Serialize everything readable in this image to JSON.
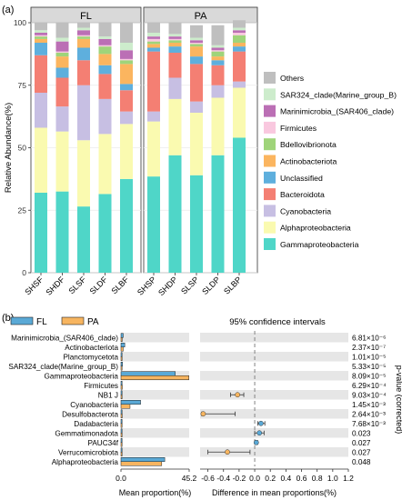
{
  "panel_a_label": "(a)",
  "panel_b_label": "(b)",
  "chart_data": [
    {
      "type": "bar",
      "stacked": true,
      "facets": [
        "FL",
        "PA"
      ],
      "categories": [
        {
          "label": "SHSF",
          "facet": "FL"
        },
        {
          "label": "SHDF",
          "facet": "FL"
        },
        {
          "label": "SLSF",
          "facet": "FL"
        },
        {
          "label": "SLDF",
          "facet": "FL"
        },
        {
          "label": "SLBF",
          "facet": "FL"
        },
        {
          "label": "SHSP",
          "facet": "PA"
        },
        {
          "label": "SHDP",
          "facet": "PA"
        },
        {
          "label": "SLSP",
          "facet": "PA"
        },
        {
          "label": "SLDP",
          "facet": "PA"
        },
        {
          "label": "SLBP",
          "facet": "PA"
        }
      ],
      "ylabel": "Relative Abundance(%)",
      "ylim": [
        0,
        100
      ],
      "yticks": [
        "0",
        "25",
        "50",
        "75",
        "100"
      ],
      "legend_position": "right",
      "series": [
        {
          "name": "Gammaproteobacteria",
          "color": "#4fd6c8",
          "values": [
            32,
            32.5,
            26.5,
            31.5,
            37.5,
            38.5,
            47,
            39,
            47,
            54
          ]
        },
        {
          "name": "Alphaproteobacteria",
          "color": "#fafab0",
          "values": [
            26,
            24,
            26.5,
            24,
            22,
            22,
            22.5,
            25,
            23,
            20
          ]
        },
        {
          "name": "Cyanobacteria",
          "color": "#c7bfe3",
          "values": [
            14,
            10,
            22,
            14,
            5,
            4,
            8.5,
            4.5,
            5,
            2.5
          ]
        },
        {
          "name": "Bacteroidota",
          "color": "#f47f73",
          "values": [
            15,
            11.5,
            10,
            10,
            8.5,
            24,
            10,
            15,
            8,
            12
          ]
        },
        {
          "name": "Unclassified",
          "color": "#5eafdd",
          "values": [
            5,
            4,
            5,
            3.5,
            2.5,
            1.5,
            2.5,
            3,
            2,
            2
          ]
        },
        {
          "name": "Actinobacteriota",
          "color": "#fbb55f",
          "values": [
            1.5,
            4.5,
            3.5,
            4.5,
            8,
            1.5,
            1.5,
            4,
            1.5,
            1.5
          ]
        },
        {
          "name": "Bdellovibrionota",
          "color": "#9fd47a",
          "values": [
            1,
            1.5,
            1,
            3,
            1.5,
            1,
            1,
            1,
            2,
            3
          ]
        },
        {
          "name": "Firmicutes",
          "color": "#f9c8df",
          "values": [
            0.5,
            0.5,
            0.5,
            0.5,
            0.5,
            1,
            0.5,
            0.5,
            0.5,
            1
          ]
        },
        {
          "name": "Marinimicrobia_(SAR406_clade)",
          "color": "#bb6fb5",
          "values": [
            1,
            4,
            2,
            2.5,
            3.5,
            1,
            1,
            1,
            1,
            1
          ]
        },
        {
          "name": "SAR324_clade(Marine_group_B)",
          "color": "#cdeccc",
          "values": [
            1,
            1.5,
            1,
            1,
            3,
            1.5,
            1,
            1,
            1,
            1
          ]
        },
        {
          "name": "Others",
          "color": "#bfbfbf",
          "values": [
            3,
            6,
            2,
            5.5,
            8,
            4,
            4.5,
            5,
            8,
            3
          ]
        }
      ]
    },
    {
      "type": "bar",
      "orientation": "horizontal",
      "categories": [
        "Marinimicrobia_(SAR406_clade)",
        "Actinobacteriota",
        "Planctomycetota",
        "SAR324_clade(Marine_group_B)",
        "Gammaproteobacteria",
        "Firmicutes",
        "NB1 J",
        "Cyanobacteria",
        "Desulfobacterota",
        "Dadabacteria",
        "Gemmatimonadota",
        "PAUC34f",
        "Verrucomicrobiota",
        "Alphaproteobacteria"
      ],
      "xlabel": "Mean proportion(%)",
      "xticks": [
        "0.0",
        "45.2"
      ],
      "xlim": [
        0,
        45.2
      ],
      "legend_position": "top",
      "series": [
        {
          "name": "FL",
          "color": "#5aa9d6",
          "values": [
            1.5,
            2.5,
            0.4,
            1.0,
            36,
            0.5,
            0.3,
            13,
            0.3,
            0.4,
            0.3,
            0.2,
            0.1,
            29
          ]
        },
        {
          "name": "PA",
          "color": "#f7b560",
          "values": [
            0.8,
            1.5,
            0.2,
            0.6,
            45,
            0.9,
            0.7,
            6,
            0.8,
            0.2,
            0.1,
            0.05,
            0.6,
            27
          ]
        }
      ]
    },
    {
      "type": "scatter",
      "title": "95% confidence intervals",
      "xlabel": "Difference in mean proportions(%)",
      "ylabel": "p-value (corrected)",
      "xlim": [
        -0.7,
        1.2
      ],
      "xticks": [
        "-0.6",
        "-0.4",
        "-0.2",
        "0.0",
        "0.2",
        "0.4",
        "0.6",
        "0.8",
        "1.0",
        "1.2"
      ],
      "categories": [
        "Marinimicrobia_(SAR406_clade)",
        "Actinobacteriota",
        "Planctomycetota",
        "SAR324_clade(Marine_group_B)",
        "Gammaproteobacteria",
        "Firmicutes",
        "NB1 J",
        "Cyanobacteria",
        "Desulfobacterota",
        "Dadabacteria",
        "Gemmatimonadota",
        "PAUC34f",
        "Verrucomicrobiota",
        "Alphaproteobacteria"
      ],
      "points": [
        {
          "category": "NB1 J",
          "diff": -0.22,
          "lo": -0.31,
          "hi": -0.14,
          "color": "#f7b560"
        },
        {
          "category": "Desulfobacterota",
          "diff": -0.66,
          "lo": -0.68,
          "hi": -0.25,
          "color": "#f7b560"
        },
        {
          "category": "Dadabacteria",
          "diff": 0.08,
          "lo": 0.04,
          "hi": 0.13,
          "color": "#5aa9d6"
        },
        {
          "category": "Gemmatimonadota",
          "diff": 0.06,
          "lo": 0.0,
          "hi": 0.12,
          "color": "#5aa9d6"
        },
        {
          "category": "PAUC34f",
          "diff": 0.02,
          "lo": 0.0,
          "hi": 0.04,
          "color": "#5aa9d6"
        },
        {
          "category": "Verrucomicrobiota",
          "diff": -0.35,
          "lo": -0.6,
          "hi": -0.06,
          "color": "#f7b560"
        }
      ],
      "p_values": [
        "6.81×10⁻⁶",
        "2.37×10⁻⁷",
        "1.01×10⁻⁵",
        "5.33×10⁻⁵",
        "8.09×10⁻⁵",
        "6.29×10⁻⁴",
        "9.03×10⁻⁴",
        "1.45×10⁻³",
        "2.64×10⁻³",
        "7.68×10⁻³",
        "0.023",
        "0.027",
        "0.027",
        "0.048"
      ]
    }
  ]
}
